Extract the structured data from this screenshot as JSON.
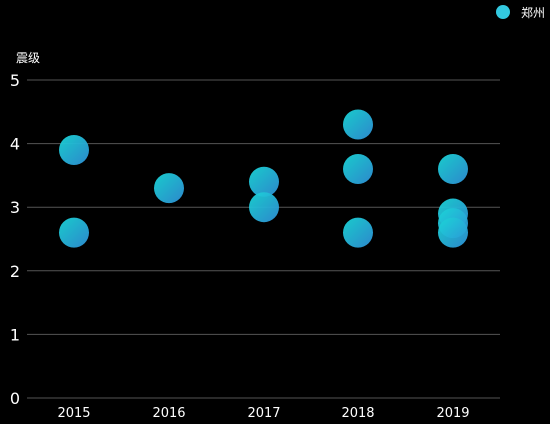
{
  "chart_data": {
    "type": "scatter",
    "title": "",
    "xlabel": "",
    "ylabel": "震级",
    "categories": [
      "2015",
      "2016",
      "2017",
      "2018",
      "2019"
    ],
    "ylim": [
      0,
      5
    ],
    "yticks": [
      0,
      1,
      2,
      3,
      4,
      5
    ],
    "grid": true,
    "legend_position": "top-right",
    "series": [
      {
        "name": "郑州",
        "points": [
          {
            "x": "2015",
            "y": 3.9
          },
          {
            "x": "2015",
            "y": 2.6
          },
          {
            "x": "2016",
            "y": 3.3
          },
          {
            "x": "2017",
            "y": 3.4
          },
          {
            "x": "2017",
            "y": 3.0
          },
          {
            "x": "2018",
            "y": 4.3
          },
          {
            "x": "2018",
            "y": 3.6
          },
          {
            "x": "2018",
            "y": 2.6
          },
          {
            "x": "2019",
            "y": 3.6
          },
          {
            "x": "2019",
            "y": 2.9
          },
          {
            "x": "2019",
            "y": 2.75
          },
          {
            "x": "2019",
            "y": 2.6
          }
        ]
      }
    ]
  },
  "colors": {
    "background": "#000000",
    "gridline": "#555555",
    "axis_text": "#ffffff",
    "legend_marker": "#33c9e0",
    "point_gradient_start": "#1ad6d6",
    "point_gradient_end": "#2f8fd8"
  }
}
